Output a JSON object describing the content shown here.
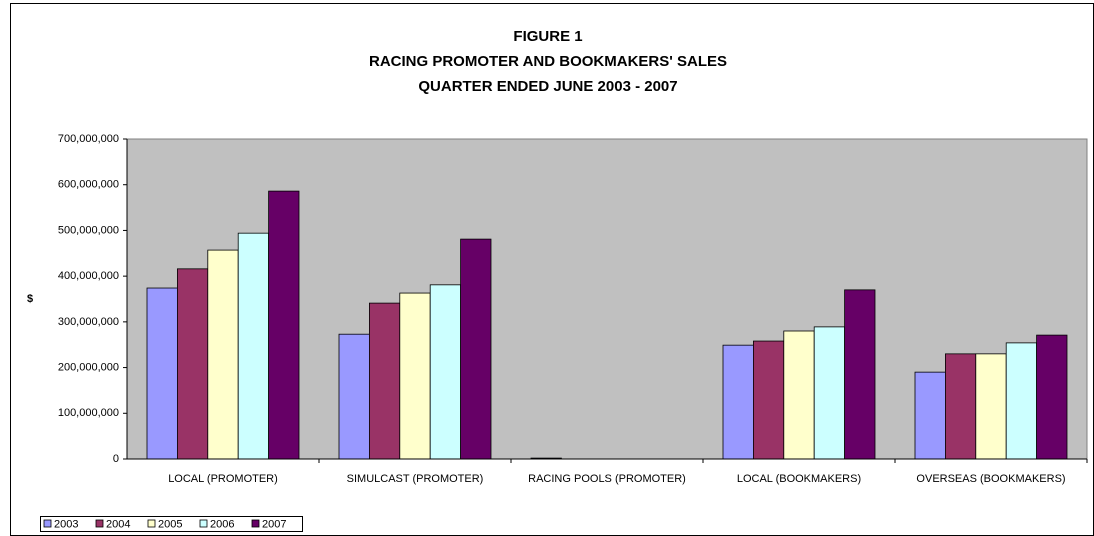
{
  "chart_data": {
    "type": "bar",
    "title_lines": [
      "FIGURE 1",
      "RACING PROMOTER AND BOOKMAKERS' SALES",
      "QUARTER ENDED JUNE 2003 - 2007"
    ],
    "ylabel": "$",
    "categories": [
      "LOCAL (PROMOTER)",
      "SIMULCAST (PROMOTER)",
      "RACING POOLS (PROMOTER)",
      "LOCAL (BOOKMAKERS)",
      "OVERSEAS (BOOKMAKERS)"
    ],
    "series": [
      {
        "name": "2003",
        "color": "#9999ff",
        "values": [
          374000000,
          273000000,
          2000000,
          249000000,
          190000000
        ]
      },
      {
        "name": "2004",
        "color": "#993366",
        "values": [
          416000000,
          341000000,
          0,
          258000000,
          230000000
        ]
      },
      {
        "name": "2005",
        "color": "#ffffcc",
        "values": [
          457000000,
          363000000,
          0,
          280000000,
          230000000
        ]
      },
      {
        "name": "2006",
        "color": "#ccffff",
        "values": [
          494000000,
          381000000,
          0,
          289000000,
          254000000
        ]
      },
      {
        "name": "2007",
        "color": "#660066",
        "values": [
          586000000,
          481000000,
          0,
          370000000,
          271000000
        ]
      }
    ],
    "ylim": [
      0,
      700000000
    ],
    "yticks": [
      0,
      {
        "value": 100000000,
        "label": "100,000,000"
      },
      {
        "value": 200000000,
        "label": "200,000,000"
      },
      {
        "value": 300000000,
        "label": "300,000,000"
      },
      {
        "value": 400000000,
        "label": "400,000,000"
      },
      {
        "value": 500000000,
        "label": "500,000,000"
      },
      {
        "value": 600000000,
        "label": "600,000,000"
      },
      {
        "value": 700000000,
        "label": "700,000,000"
      }
    ],
    "plot_background": "#c0c0c0",
    "grid": false,
    "legend": "bottom-left"
  }
}
